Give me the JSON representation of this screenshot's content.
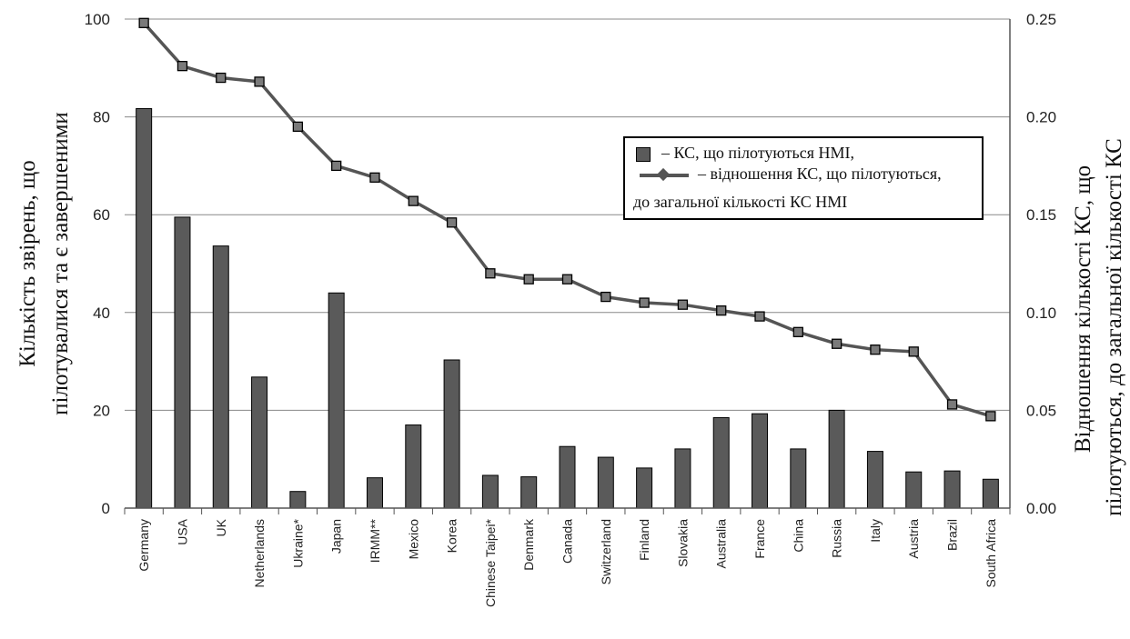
{
  "chart_data": {
    "type": "bar",
    "categories": [
      "Germany",
      "USA",
      "UK",
      "Netherlands",
      "Ukraine*",
      "Japan",
      "IRMM**",
      "Mexico",
      "Korea",
      "Chinese Taipei*",
      "Denmark",
      "Canada",
      "Switzerland",
      "Finland",
      "Slovakia",
      "Australia",
      "France",
      "China",
      "Russia",
      "Italy",
      "Austria",
      "Brazil",
      "South Africa"
    ],
    "series": [
      {
        "name": "– КС, що пілотуються НМІ,",
        "kind": "bar",
        "axis": "left",
        "color": "#5a5a5a",
        "values": [
          81.7,
          59.5,
          53.6,
          26.8,
          3.4,
          44.0,
          6.2,
          17.0,
          30.3,
          6.7,
          6.4,
          12.6,
          10.4,
          8.2,
          12.1,
          18.5,
          19.3,
          12.1,
          20.0,
          11.6,
          7.4,
          7.6,
          5.9
        ]
      },
      {
        "name": "– відношення КС, що пілотуються, до загальної кількості КС НМІ",
        "kind": "line",
        "axis": "right",
        "color": "#555555",
        "values": [
          0.248,
          0.226,
          0.22,
          0.218,
          0.195,
          0.175,
          0.169,
          0.157,
          0.146,
          0.12,
          0.117,
          0.117,
          0.108,
          0.105,
          0.104,
          0.101,
          0.098,
          0.09,
          0.084,
          0.081,
          0.08,
          0.053,
          0.047
        ]
      }
    ],
    "ylabel": "Кількість звірень, що пілотувалися та є завершеними",
    "y2label": "Відношення кількості КС, що пілотуються, до загальної кількості КС",
    "ylim": [
      0,
      100
    ],
    "y2lim": [
      0,
      0.25
    ],
    "yticks": [
      "0",
      "20",
      "40",
      "60",
      "80",
      "100"
    ],
    "y2ticks": [
      "0.00",
      "0.05",
      "0.10",
      "0.15",
      "0.20",
      "0.25"
    ],
    "grid": true,
    "legend_position": "top-right"
  },
  "legend": {
    "bar_label": "– КС, що пілотуються НМІ,",
    "line_label_1": "– відношення КС, що пілотуються,",
    "line_label_2": "до загальної кількості КС НМІ"
  },
  "axis_titles": {
    "left_line1": "Кількість звірень, що",
    "left_line2": "пілотувалися та є завершеними",
    "right_line1": "Відношення кількості КС, що",
    "right_line2": "пілотуються, до загальної кількості КС"
  }
}
